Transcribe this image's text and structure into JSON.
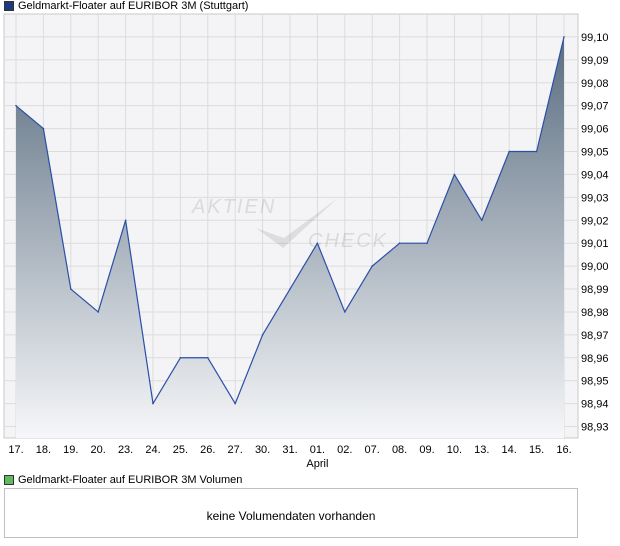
{
  "price_legend": {
    "label": "Geldmarkt-Floater auf EURIBOR 3M (Stuttgart)",
    "color": "#1f3a7a"
  },
  "volume_legend": {
    "label": "Geldmarkt-Floater auf EURIBOR 3M Volumen",
    "color": "#5fba5f"
  },
  "volume_panel": {
    "message": "keine Volumendaten vorhanden"
  },
  "watermark": {
    "word1": "AKTIEN",
    "word2": "CHECK"
  },
  "chart_data": {
    "type": "area",
    "title": "Geldmarkt-Floater auf EURIBOR 3M (Stuttgart)",
    "categories": [
      "17.",
      "18.",
      "19.",
      "20.",
      "23.",
      "24.",
      "25.",
      "26.",
      "27.",
      "30.",
      "31.",
      "01.",
      "02.",
      "07.",
      "08.",
      "09.",
      "10.",
      "13.",
      "14.",
      "15.",
      "16."
    ],
    "month_label": {
      "index": 11,
      "text": "April"
    },
    "values": [
      99.07,
      99.06,
      98.99,
      98.98,
      99.02,
      98.94,
      98.96,
      98.96,
      98.94,
      98.97,
      98.99,
      99.01,
      98.98,
      99.0,
      99.01,
      99.01,
      99.04,
      99.02,
      99.05,
      99.05,
      99.1
    ],
    "yticks": [
      "98,93",
      "98,94",
      "98,95",
      "98,96",
      "98,97",
      "98,98",
      "98,99",
      "99,00",
      "99,01",
      "99,02",
      "99,03",
      "99,04",
      "99,05",
      "99,06",
      "99,07",
      "99,08",
      "99,09",
      "99,10"
    ],
    "ylim": [
      98.925,
      99.11
    ],
    "grid": true,
    "line_color": "#2a4fa8",
    "fill_top_color": "#5a6d80",
    "fill_bottom_color": "#f6f7f9"
  }
}
